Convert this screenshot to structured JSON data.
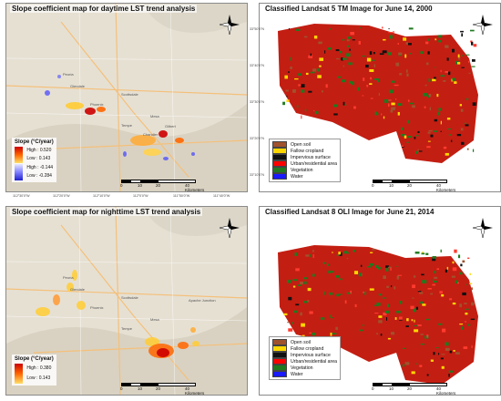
{
  "panels": {
    "day": {
      "title": "Slope coefficient map for daytime LST trend analysis",
      "legend_title": "Slope (°C/year)",
      "legend_entries": [
        "High : 0.520",
        "Low : 0.143",
        "High : -0.144",
        "Low : -0.284"
      ]
    },
    "night": {
      "title": "Slope coefficient map for nighttime LST trend analysis",
      "legend_title": "Slope (°C/year)",
      "legend_entries": [
        "High : 0.380",
        "Low : 0.143"
      ]
    },
    "c2000": {
      "title": "Classified Landsat 5 TM Image for June 14, 2000"
    },
    "c2014": {
      "title": "Classified Landsat 8 OLI Image for June 21, 2014"
    }
  },
  "classes": [
    {
      "label": "Open soil",
      "color": "#a0522d"
    },
    {
      "label": "Fallow cropland",
      "color": "#ffd700"
    },
    {
      "label": "Impervious surface",
      "color": "#111111"
    },
    {
      "label": "Urban/residential area",
      "color": "#ff0000"
    },
    {
      "label": "Vegetation",
      "color": "#1f7a1f"
    },
    {
      "label": "Water",
      "color": "#1a1aff"
    }
  ],
  "scale": {
    "ticks": [
      "0",
      "10",
      "20",
      "40 Kilometers"
    ]
  },
  "place_names": [
    "Peoria",
    "Glendale",
    "Phoenix",
    "Scottsdale",
    "Mesa",
    "Tempe",
    "Gilbert",
    "Chandler",
    "Apache Junction"
  ],
  "coords": {
    "lon": [
      "112°30'0\"W",
      "112°20'0\"W",
      "112°10'0\"W",
      "112°0'0\"W",
      "111°50'0\"W",
      "111°40'0\"W"
    ],
    "lat": [
      "33°50'0\"N",
      "33°40'0\"N",
      "33°30'0\"N",
      "33°20'0\"N",
      "33°10'0\"N"
    ]
  }
}
